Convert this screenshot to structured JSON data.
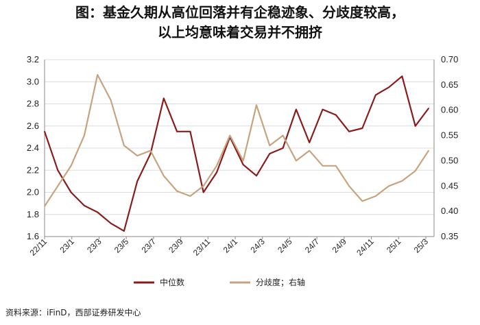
{
  "title": {
    "line1": "图：基金久期从高位回落并有企稳迹象、分歧度较高，",
    "line2": "以上均意味着交易并不拥挤"
  },
  "source": "资料来源：iFinD，西部证券研发中心",
  "colors": {
    "median": "#8B1A1A",
    "dispersion": "#C6A37E",
    "grid": "#dcdcdc",
    "axis": "#888888"
  },
  "chart_data": {
    "type": "line",
    "title": "",
    "xlabel": "",
    "ylabel": "",
    "y_left": {
      "min": 1.6,
      "max": 3.2,
      "ticks": [
        "1.6",
        "1.8",
        "2.0",
        "2.2",
        "2.4",
        "2.6",
        "2.8",
        "3.0",
        "3.2"
      ]
    },
    "y_right": {
      "min": 0.35,
      "max": 0.7,
      "ticks": [
        "0.35",
        "0.40",
        "0.45",
        "0.50",
        "0.55",
        "0.60",
        "0.65",
        "0.70"
      ]
    },
    "x_ticks": [
      "22/11",
      "23/1",
      "23/3",
      "23/5",
      "23/7",
      "23/9",
      "23/11",
      "24/1",
      "24/3",
      "24/5",
      "24/7",
      "24/9",
      "24/11",
      "25/1",
      "25/3"
    ],
    "grid": "horizontal",
    "legend": "bottom",
    "series": [
      {
        "name": "中位数",
        "axis": "left",
        "x": [
          "22/11",
          "22/12",
          "23/1",
          "23/2",
          "23/3",
          "23/4",
          "23/5",
          "23/6",
          "23/7",
          "23/8",
          "23/9",
          "23/10",
          "23/11",
          "23/12",
          "24/1",
          "24/2",
          "24/3",
          "24/4",
          "24/5",
          "24/6",
          "24/7",
          "24/8",
          "24/9",
          "24/10",
          "24/11",
          "24/12",
          "25/1",
          "25/2",
          "25/3",
          "25/4"
        ],
        "values": [
          2.55,
          2.2,
          2.0,
          1.88,
          1.82,
          1.72,
          1.65,
          2.1,
          2.35,
          2.85,
          2.55,
          2.55,
          2.0,
          2.18,
          2.5,
          2.25,
          2.15,
          2.35,
          2.4,
          2.75,
          2.45,
          2.75,
          2.7,
          2.55,
          2.58,
          2.88,
          2.95,
          3.05,
          2.6,
          2.76
        ]
      },
      {
        "name": "分歧度；右轴",
        "axis": "right",
        "x": [
          "22/11",
          "22/12",
          "23/1",
          "23/2",
          "23/3",
          "23/4",
          "23/5",
          "23/6",
          "23/7",
          "23/8",
          "23/9",
          "23/10",
          "23/11",
          "23/12",
          "24/1",
          "24/2",
          "24/3",
          "24/4",
          "24/5",
          "24/6",
          "24/7",
          "24/8",
          "24/9",
          "24/10",
          "24/11",
          "24/12",
          "25/1",
          "25/2",
          "25/3",
          "25/4"
        ],
        "values": [
          0.41,
          0.45,
          0.49,
          0.55,
          0.67,
          0.62,
          0.53,
          0.51,
          0.52,
          0.47,
          0.44,
          0.43,
          0.45,
          0.49,
          0.55,
          0.5,
          0.61,
          0.53,
          0.55,
          0.5,
          0.52,
          0.49,
          0.49,
          0.45,
          0.42,
          0.43,
          0.45,
          0.46,
          0.48,
          0.52
        ]
      }
    ]
  }
}
